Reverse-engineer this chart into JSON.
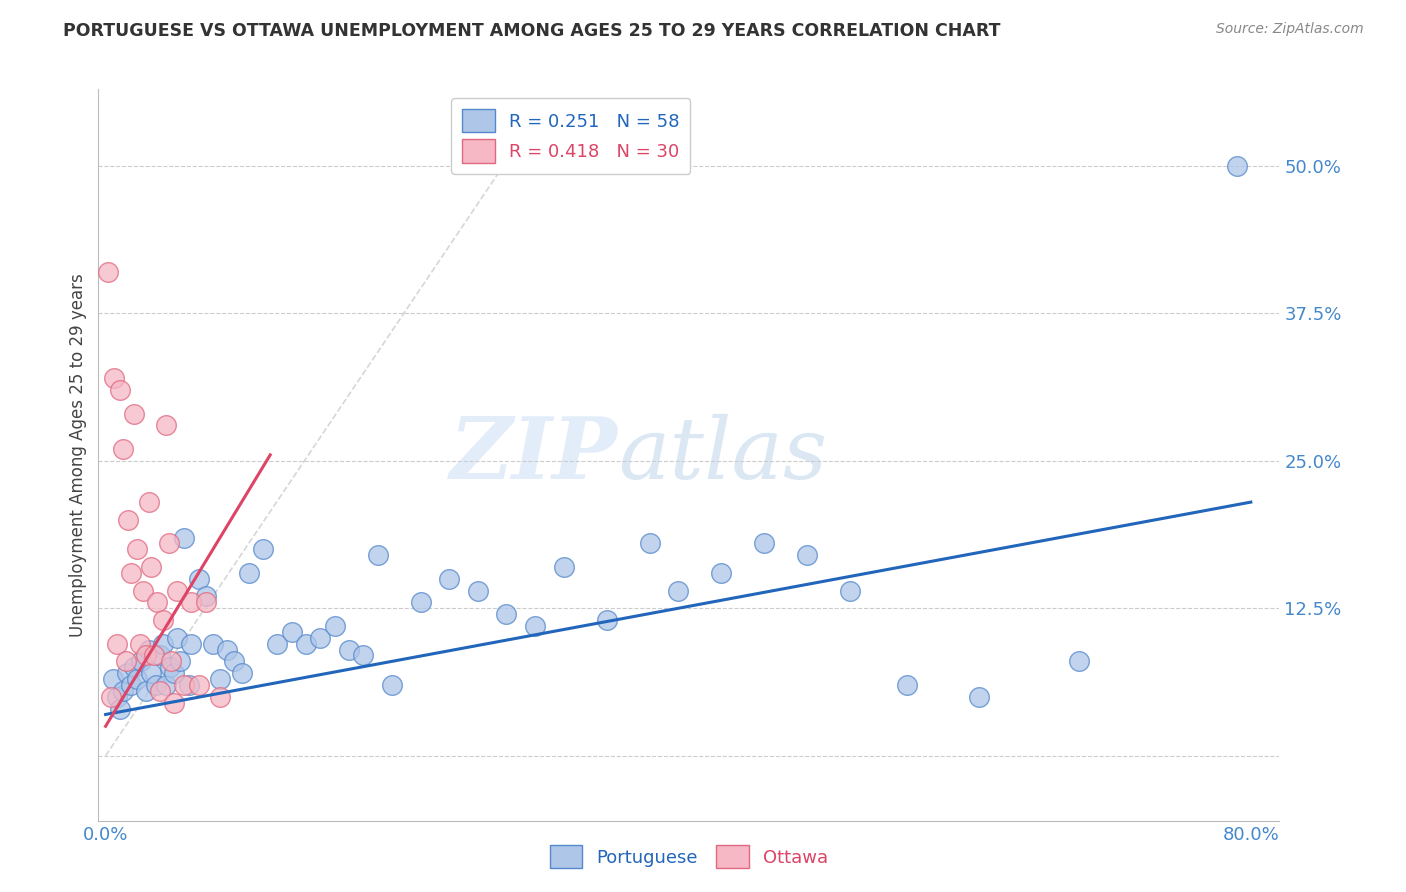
{
  "title": "PORTUGUESE VS OTTAWA UNEMPLOYMENT AMONG AGES 25 TO 29 YEARS CORRELATION CHART",
  "source": "Source: ZipAtlas.com",
  "ylabel": "Unemployment Among Ages 25 to 29 years",
  "xlim": [
    -0.005,
    0.82
  ],
  "ylim": [
    -0.055,
    0.565
  ],
  "xticks": [
    0.0,
    0.8
  ],
  "xtick_labels": [
    "0.0%",
    "80.0%"
  ],
  "ytick_positions": [
    0.0,
    0.125,
    0.25,
    0.375,
    0.5
  ],
  "ytick_labels": [
    "",
    "12.5%",
    "25.0%",
    "37.5%",
    "50.0%"
  ],
  "R_portuguese": 0.251,
  "N_portuguese": 58,
  "R_ottawa": 0.418,
  "N_ottawa": 30,
  "portuguese_color": "#aec6e8",
  "ottawa_color": "#f5b8c4",
  "portuguese_edge_color": "#5588cc",
  "ottawa_edge_color": "#e06880",
  "portuguese_line_color": "#2266bb",
  "ottawa_line_color": "#dd4466",
  "diagonal_color": "#cccccc",
  "legend_label_portuguese": "Portuguese",
  "legend_label_ottawa": "Ottawa",
  "watermark_zip": "ZIP",
  "watermark_atlas": "atlas",
  "portuguese_x": [
    0.005,
    0.008,
    0.01,
    0.012,
    0.015,
    0.018,
    0.02,
    0.022,
    0.025,
    0.028,
    0.03,
    0.032,
    0.035,
    0.038,
    0.04,
    0.042,
    0.045,
    0.048,
    0.05,
    0.052,
    0.055,
    0.058,
    0.06,
    0.065,
    0.07,
    0.075,
    0.08,
    0.085,
    0.09,
    0.095,
    0.1,
    0.11,
    0.12,
    0.13,
    0.14,
    0.15,
    0.16,
    0.17,
    0.18,
    0.19,
    0.2,
    0.22,
    0.24,
    0.26,
    0.28,
    0.3,
    0.32,
    0.35,
    0.38,
    0.4,
    0.43,
    0.46,
    0.49,
    0.52,
    0.56,
    0.61,
    0.68,
    0.79
  ],
  "portuguese_y": [
    0.065,
    0.05,
    0.04,
    0.055,
    0.07,
    0.06,
    0.075,
    0.065,
    0.08,
    0.055,
    0.09,
    0.07,
    0.06,
    0.085,
    0.095,
    0.06,
    0.075,
    0.07,
    0.1,
    0.08,
    0.185,
    0.06,
    0.095,
    0.15,
    0.135,
    0.095,
    0.065,
    0.09,
    0.08,
    0.07,
    0.155,
    0.175,
    0.095,
    0.105,
    0.095,
    0.1,
    0.11,
    0.09,
    0.085,
    0.17,
    0.06,
    0.13,
    0.15,
    0.14,
    0.12,
    0.11,
    0.16,
    0.115,
    0.18,
    0.14,
    0.155,
    0.18,
    0.17,
    0.14,
    0.06,
    0.05,
    0.08,
    0.5
  ],
  "ottawa_x": [
    0.002,
    0.004,
    0.006,
    0.008,
    0.01,
    0.012,
    0.014,
    0.016,
    0.018,
    0.02,
    0.022,
    0.024,
    0.026,
    0.028,
    0.03,
    0.032,
    0.034,
    0.036,
    0.038,
    0.04,
    0.042,
    0.044,
    0.046,
    0.048,
    0.05,
    0.055,
    0.06,
    0.065,
    0.07,
    0.08
  ],
  "ottawa_y": [
    0.41,
    0.05,
    0.32,
    0.095,
    0.31,
    0.26,
    0.08,
    0.2,
    0.155,
    0.29,
    0.175,
    0.095,
    0.14,
    0.085,
    0.215,
    0.16,
    0.085,
    0.13,
    0.055,
    0.115,
    0.28,
    0.18,
    0.08,
    0.045,
    0.14,
    0.06,
    0.13,
    0.06,
    0.13,
    0.05
  ],
  "portuguese_line_x": [
    0.0,
    0.8
  ],
  "portuguese_line_y": [
    0.035,
    0.215
  ],
  "ottawa_line_x": [
    0.0,
    0.115
  ],
  "ottawa_line_y": [
    0.025,
    0.255
  ]
}
